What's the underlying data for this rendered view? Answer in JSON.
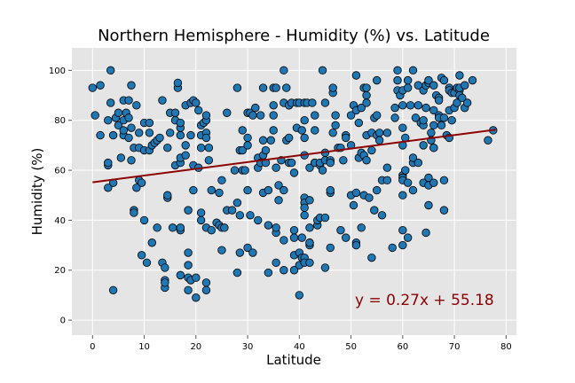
{
  "colors": {
    "plot_background": "#e5e5e5",
    "grid": "#ffffff",
    "point_fill": "#1f77b4",
    "point_edge": "#000000",
    "regression_line": "#8b0000",
    "annotation": "#8b0000"
  },
  "chart_data": {
    "type": "scatter",
    "title": "Northern Hemisphere - Humidity (%) vs. Latitude",
    "xlabel": "Latitude",
    "ylabel": "Humidity (%)",
    "xlim": [
      -4,
      82
    ],
    "ylim": [
      -6,
      109
    ],
    "xticks": [
      0,
      10,
      20,
      30,
      40,
      50,
      60,
      70,
      80
    ],
    "yticks": [
      0,
      20,
      40,
      60,
      80,
      100
    ],
    "grid": true,
    "regression": {
      "slope": 0.27,
      "intercept": 55.18,
      "x_range": [
        0,
        78
      ],
      "label": "y = 0.27x + 55.18"
    },
    "points": [
      [
        0,
        93
      ],
      [
        0.5,
        82
      ],
      [
        1.5,
        94
      ],
      [
        1.5,
        74
      ],
      [
        3,
        80
      ],
      [
        3,
        62
      ],
      [
        3,
        63
      ],
      [
        3,
        53
      ],
      [
        3.5,
        100
      ],
      [
        3.5,
        87
      ],
      [
        4,
        55
      ],
      [
        4,
        74
      ],
      [
        4,
        12
      ],
      [
        4.5,
        81
      ],
      [
        5,
        78
      ],
      [
        5,
        83
      ],
      [
        5.5,
        65
      ],
      [
        6,
        88
      ],
      [
        6,
        80
      ],
      [
        6,
        74
      ],
      [
        6,
        76
      ],
      [
        6.5,
        83
      ],
      [
        7,
        73
      ],
      [
        7,
        88
      ],
      [
        7,
        81
      ],
      [
        7.5,
        64
      ],
      [
        7.5,
        94
      ],
      [
        7.5,
        77
      ],
      [
        8,
        69
      ],
      [
        8,
        44
      ],
      [
        8,
        43
      ],
      [
        8.5,
        53
      ],
      [
        8.5,
        86
      ],
      [
        9,
        56
      ],
      [
        9,
        75
      ],
      [
        9,
        69
      ],
      [
        9.5,
        26
      ],
      [
        9.5,
        55
      ],
      [
        10,
        40
      ],
      [
        10,
        68
      ],
      [
        10,
        79
      ],
      [
        10.5,
        23
      ],
      [
        11,
        68
      ],
      [
        11,
        75
      ],
      [
        11,
        79
      ],
      [
        11.5,
        31
      ],
      [
        11.5,
        70
      ],
      [
        12,
        71
      ],
      [
        12.5,
        72
      ],
      [
        12.5,
        37
      ],
      [
        13,
        73
      ],
      [
        13.5,
        88
      ],
      [
        13.5,
        23
      ],
      [
        14,
        16
      ],
      [
        14,
        13
      ],
      [
        14,
        15
      ],
      [
        14,
        21
      ],
      [
        14.5,
        49
      ],
      [
        14.5,
        50
      ],
      [
        14.5,
        69
      ],
      [
        15,
        83
      ],
      [
        15,
        75
      ],
      [
        15.5,
        37
      ],
      [
        16,
        62
      ],
      [
        16,
        83
      ],
      [
        16,
        80
      ],
      [
        16.5,
        93
      ],
      [
        16.5,
        95
      ],
      [
        17,
        18
      ],
      [
        17,
        36
      ],
      [
        17,
        63
      ],
      [
        17,
        65
      ],
      [
        17,
        74
      ],
      [
        17,
        37
      ],
      [
        17,
        77
      ],
      [
        17,
        79
      ],
      [
        18,
        86
      ],
      [
        18,
        66
      ],
      [
        18,
        70
      ],
      [
        18.5,
        17
      ],
      [
        18.5,
        12
      ],
      [
        18.5,
        44
      ],
      [
        18.5,
        22
      ],
      [
        18.5,
        27
      ],
      [
        19,
        87
      ],
      [
        19,
        74
      ],
      [
        19,
        16
      ],
      [
        19.5,
        52
      ],
      [
        19.5,
        88
      ],
      [
        19.5,
        62
      ],
      [
        20,
        87
      ],
      [
        20,
        17
      ],
      [
        20,
        9
      ],
      [
        20.5,
        61
      ],
      [
        20.5,
        84
      ],
      [
        21,
        69
      ],
      [
        21,
        40
      ],
      [
        21,
        43
      ],
      [
        21,
        74
      ],
      [
        21,
        78
      ],
      [
        21.5,
        79
      ],
      [
        22,
        80
      ],
      [
        22,
        82
      ],
      [
        22,
        75
      ],
      [
        22,
        37
      ],
      [
        22,
        15
      ],
      [
        22,
        12
      ],
      [
        22,
        73
      ],
      [
        22.5,
        69
      ],
      [
        22.5,
        64
      ],
      [
        23,
        36
      ],
      [
        23,
        52
      ],
      [
        24,
        39
      ],
      [
        24.5,
        51
      ],
      [
        24.5,
        38
      ],
      [
        25,
        56
      ],
      [
        25,
        37
      ],
      [
        25,
        28
      ],
      [
        25.5,
        37
      ],
      [
        26,
        44
      ],
      [
        26,
        83
      ],
      [
        27,
        44
      ],
      [
        27.5,
        60
      ],
      [
        28,
        47
      ],
      [
        28,
        93
      ],
      [
        28,
        19
      ],
      [
        28.5,
        42
      ],
      [
        28.5,
        27
      ],
      [
        28.5,
        68
      ],
      [
        29,
        60
      ],
      [
        29,
        68
      ],
      [
        29,
        76
      ],
      [
        29.5,
        60
      ],
      [
        30,
        73
      ],
      [
        30,
        83
      ],
      [
        30,
        52
      ],
      [
        30,
        29
      ],
      [
        30,
        70
      ],
      [
        30.5,
        42
      ],
      [
        30.5,
        83
      ],
      [
        31,
        82
      ],
      [
        31,
        27
      ],
      [
        31.5,
        85
      ],
      [
        32,
        40
      ],
      [
        32,
        65
      ],
      [
        32,
        61
      ],
      [
        32.5,
        63
      ],
      [
        32.5,
        82
      ],
      [
        33,
        66
      ],
      [
        33,
        72
      ],
      [
        33,
        51
      ],
      [
        33,
        93
      ],
      [
        33.5,
        63
      ],
      [
        33.5,
        68
      ],
      [
        34,
        38
      ],
      [
        34,
        52
      ],
      [
        34,
        19
      ],
      [
        34.5,
        72
      ],
      [
        35,
        86
      ],
      [
        35,
        82
      ],
      [
        35,
        93
      ],
      [
        35,
        76
      ],
      [
        35.5,
        23
      ],
      [
        35.5,
        35
      ],
      [
        35.5,
        37
      ],
      [
        35.5,
        61
      ],
      [
        35.5,
        93
      ],
      [
        36,
        48
      ],
      [
        36,
        54
      ],
      [
        36.5,
        64
      ],
      [
        37,
        100
      ],
      [
        37,
        52
      ],
      [
        37,
        20
      ],
      [
        37,
        32
      ],
      [
        37,
        87
      ],
      [
        37.5,
        72
      ],
      [
        37.5,
        93
      ],
      [
        38,
        73
      ],
      [
        38,
        86
      ],
      [
        38,
        86
      ],
      [
        38,
        63
      ],
      [
        38.5,
        63
      ],
      [
        38.5,
        87
      ],
      [
        39,
        20
      ],
      [
        39,
        36
      ],
      [
        39,
        26
      ],
      [
        39,
        33
      ],
      [
        39,
        59
      ],
      [
        39.5,
        87
      ],
      [
        39.5,
        77
      ],
      [
        40,
        22
      ],
      [
        40,
        87
      ],
      [
        40,
        10
      ],
      [
        40,
        27
      ],
      [
        40.5,
        76
      ],
      [
        40.5,
        25
      ],
      [
        40.5,
        33
      ],
      [
        41,
        49
      ],
      [
        41,
        47
      ],
      [
        41,
        45
      ],
      [
        41,
        42
      ],
      [
        41,
        25
      ],
      [
        41,
        23
      ],
      [
        41,
        87
      ],
      [
        41,
        66
      ],
      [
        41,
        73
      ],
      [
        41,
        80
      ],
      [
        41.5,
        87
      ],
      [
        42,
        30
      ],
      [
        42,
        31
      ],
      [
        42,
        23
      ],
      [
        42,
        31
      ],
      [
        42,
        61
      ],
      [
        42,
        48
      ],
      [
        42,
        37
      ],
      [
        42.5,
        87
      ],
      [
        43,
        82
      ],
      [
        43,
        76
      ],
      [
        43,
        63
      ],
      [
        43,
        63
      ],
      [
        43.5,
        38
      ],
      [
        43.5,
        40
      ],
      [
        44,
        41
      ],
      [
        44,
        62
      ],
      [
        44,
        63
      ],
      [
        44.5,
        100
      ],
      [
        44.5,
        60
      ],
      [
        45,
        41
      ],
      [
        45,
        21
      ],
      [
        45,
        87
      ],
      [
        45,
        67
      ],
      [
        45,
        64
      ],
      [
        46,
        51
      ],
      [
        46,
        52
      ],
      [
        46,
        64
      ],
      [
        46,
        63
      ],
      [
        46,
        29
      ],
      [
        46.5,
        75
      ],
      [
        46.5,
        91
      ],
      [
        46.5,
        93
      ],
      [
        47,
        82
      ],
      [
        47,
        78
      ],
      [
        47.5,
        69
      ],
      [
        48,
        36
      ],
      [
        48,
        69
      ],
      [
        48.5,
        64
      ],
      [
        49,
        33
      ],
      [
        49,
        74
      ],
      [
        49,
        73
      ],
      [
        50,
        70
      ],
      [
        50,
        82
      ],
      [
        50,
        50
      ],
      [
        50.5,
        46
      ],
      [
        50.5,
        86
      ],
      [
        51,
        51
      ],
      [
        51,
        31
      ],
      [
        51,
        84
      ],
      [
        51,
        98
      ],
      [
        51,
        30
      ],
      [
        51.5,
        65
      ],
      [
        51.5,
        79
      ],
      [
        52,
        67
      ],
      [
        52,
        85
      ],
      [
        52,
        37
      ],
      [
        52.5,
        93
      ],
      [
        52.5,
        66
      ],
      [
        52.5,
        50
      ],
      [
        53,
        74
      ],
      [
        53,
        90
      ],
      [
        53,
        87
      ],
      [
        53,
        93
      ],
      [
        53,
        64
      ],
      [
        53.5,
        49
      ],
      [
        54,
        68
      ],
      [
        54,
        75
      ],
      [
        54,
        25
      ],
      [
        54.5,
        44
      ],
      [
        54.5,
        81
      ],
      [
        55,
        52
      ],
      [
        55,
        82
      ],
      [
        55,
        96
      ],
      [
        55,
        74
      ],
      [
        55.5,
        75
      ],
      [
        55.5,
        72
      ],
      [
        56,
        56
      ],
      [
        56,
        42
      ],
      [
        57,
        56
      ],
      [
        57,
        61
      ],
      [
        57,
        75
      ],
      [
        58,
        29
      ],
      [
        58.5,
        85
      ],
      [
        58.5,
        81
      ],
      [
        59,
        96
      ],
      [
        59,
        100
      ],
      [
        59,
        92
      ],
      [
        59.5,
        90
      ],
      [
        60,
        86
      ],
      [
        60,
        50
      ],
      [
        60,
        77
      ],
      [
        60,
        58
      ],
      [
        60,
        57
      ],
      [
        60,
        56
      ],
      [
        60,
        36
      ],
      [
        60,
        30
      ],
      [
        60,
        70
      ],
      [
        60,
        92
      ],
      [
        60.5,
        73
      ],
      [
        60.5,
        60
      ],
      [
        61,
        55
      ],
      [
        61,
        33
      ],
      [
        61,
        96
      ],
      [
        61,
        93
      ],
      [
        61.5,
        86
      ],
      [
        62,
        100
      ],
      [
        62,
        52
      ],
      [
        62,
        63
      ],
      [
        62,
        65
      ],
      [
        62.5,
        81
      ],
      [
        63,
        94
      ],
      [
        63,
        86
      ],
      [
        63,
        63
      ],
      [
        63.5,
        79
      ],
      [
        64,
        78
      ],
      [
        64,
        80
      ],
      [
        64,
        70
      ],
      [
        64,
        55
      ],
      [
        64,
        92
      ],
      [
        64.5,
        85
      ],
      [
        64.5,
        35
      ],
      [
        64.5,
        94
      ],
      [
        65,
        95
      ],
      [
        65,
        96
      ],
      [
        65,
        54
      ],
      [
        65,
        57
      ],
      [
        65,
        46
      ],
      [
        65.5,
        75
      ],
      [
        65.5,
        72
      ],
      [
        66,
        69
      ],
      [
        66,
        69
      ],
      [
        66,
        84
      ],
      [
        66,
        94
      ],
      [
        66,
        55
      ],
      [
        66,
        78
      ],
      [
        66.5,
        90
      ],
      [
        67,
        82
      ],
      [
        67,
        89
      ],
      [
        67,
        81
      ],
      [
        67,
        88
      ],
      [
        67.5,
        97
      ],
      [
        67.5,
        78
      ],
      [
        68,
        56
      ],
      [
        68,
        44
      ],
      [
        68,
        81
      ],
      [
        68,
        96
      ],
      [
        68.5,
        74
      ],
      [
        69,
        73
      ],
      [
        69,
        84
      ],
      [
        69,
        93
      ],
      [
        69,
        92
      ],
      [
        69.5,
        80
      ],
      [
        69.5,
        91
      ],
      [
        70,
        85
      ],
      [
        70,
        91
      ],
      [
        70.5,
        93
      ],
      [
        70.5,
        87
      ],
      [
        71,
        98
      ],
      [
        71,
        92
      ],
      [
        71,
        93
      ],
      [
        71,
        90
      ],
      [
        71.5,
        89
      ],
      [
        72,
        94
      ],
      [
        72,
        85
      ],
      [
        72.5,
        87
      ],
      [
        73.5,
        96
      ],
      [
        76.5,
        72
      ],
      [
        77.5,
        76
      ]
    ]
  }
}
